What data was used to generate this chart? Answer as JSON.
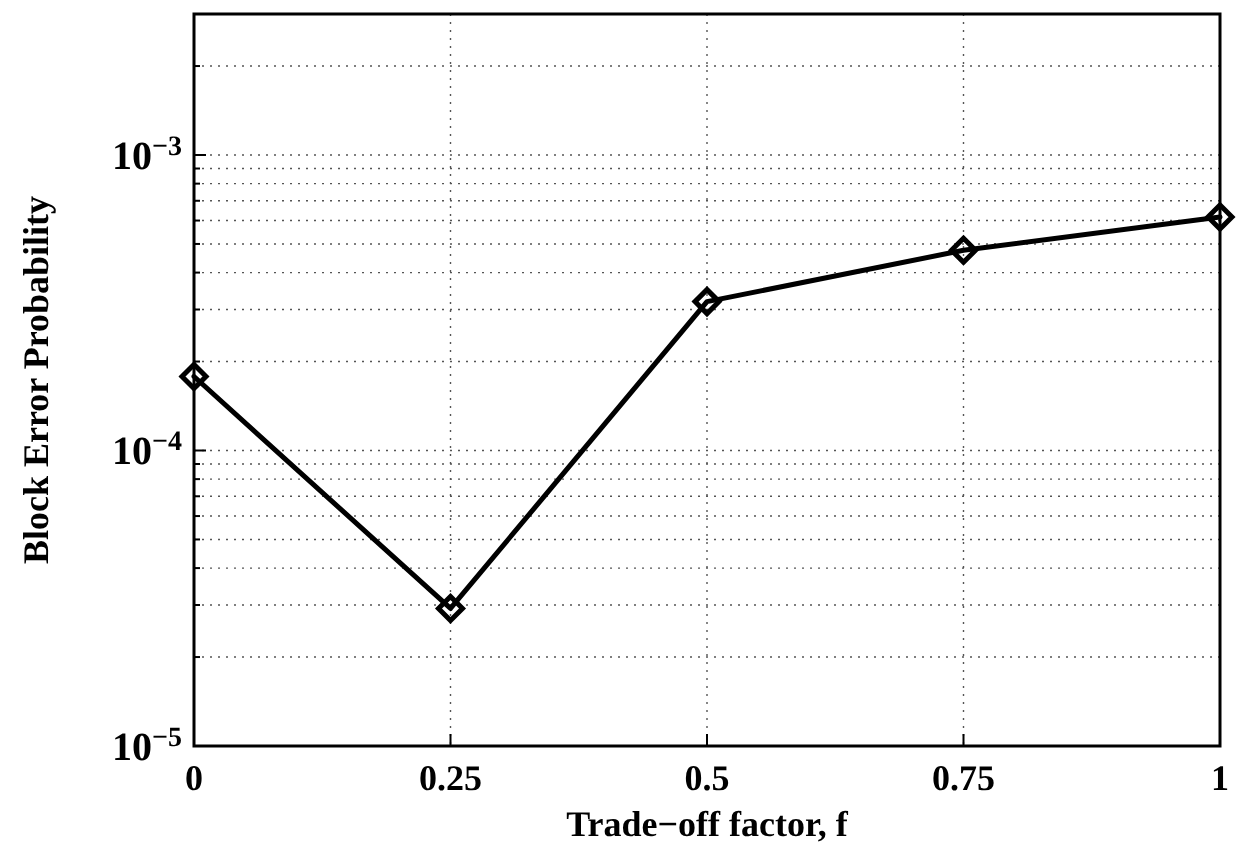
{
  "chart_data": {
    "type": "line",
    "xlabel": "Trade−off factor, f",
    "ylabel": "Block Error Probability",
    "x": [
      0,
      0.25,
      0.5,
      0.75,
      1
    ],
    "series": [
      {
        "color": "#000000",
        "values": [
          0.000178,
          2.92e-05,
          0.000319,
          0.000476,
          0.000617
        ]
      }
    ],
    "xlim": [
      0,
      1
    ],
    "xticks": [
      0,
      0.25,
      0.5,
      0.75,
      1
    ],
    "ylim": [
      1e-05,
      0.003
    ],
    "yticks": [
      {
        "value": 1e-05,
        "label": "10$^{−5}$"
      },
      {
        "value": 2e-05,
        "label": null
      },
      {
        "value": 3e-05,
        "label": null
      },
      {
        "value": 4e-05,
        "label": null
      },
      {
        "value": 5e-05,
        "label": null
      },
      {
        "value": 6e-05,
        "label": null
      },
      {
        "value": 7e-05,
        "label": null
      },
      {
        "value": 8e-05,
        "label": null
      },
      {
        "value": 9e-05,
        "label": null
      },
      {
        "value": 0.0001,
        "label": "10$^{−4}$"
      },
      {
        "value": 0.0002,
        "label": null
      },
      {
        "value": 0.0003,
        "label": null
      },
      {
        "value": 0.0004,
        "label": null
      },
      {
        "value": 0.0005,
        "label": null
      },
      {
        "value": 0.0006,
        "label": null
      },
      {
        "value": 0.0007,
        "label": null
      },
      {
        "value": 0.0008,
        "label": null
      },
      {
        "value": 0.0009,
        "label": null
      },
      {
        "value": 0.001,
        "label": "10$^{−3}$"
      },
      {
        "value": 0.002,
        "label": null
      }
    ],
    "log": "y",
    "grid": true,
    "marker": "diamond",
    "line_style": "solid"
  }
}
